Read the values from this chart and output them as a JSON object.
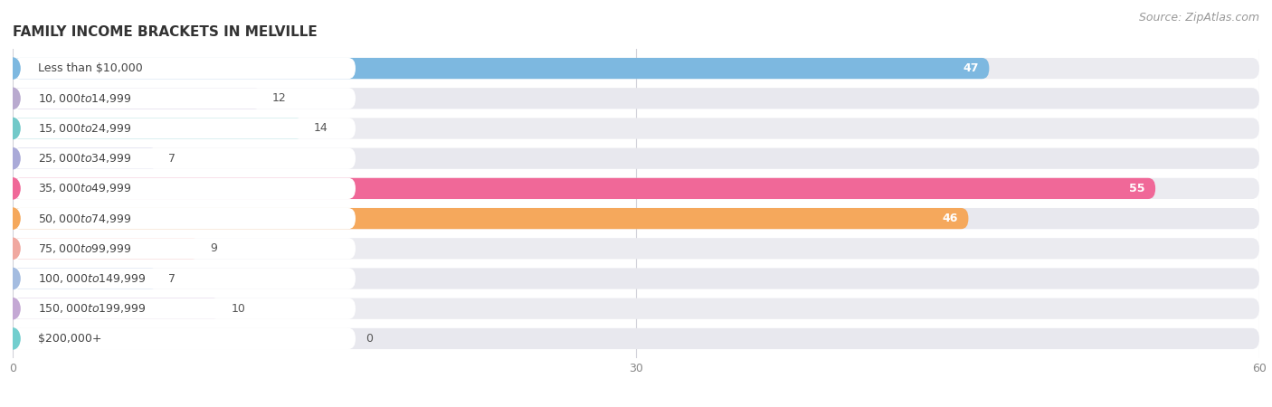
{
  "title": "FAMILY INCOME BRACKETS IN MELVILLE",
  "source": "Source: ZipAtlas.com",
  "categories": [
    "Less than $10,000",
    "$10,000 to $14,999",
    "$15,000 to $24,999",
    "$25,000 to $34,999",
    "$35,000 to $49,999",
    "$50,000 to $74,999",
    "$75,000 to $99,999",
    "$100,000 to $149,999",
    "$150,000 to $199,999",
    "$200,000+"
  ],
  "values": [
    47,
    12,
    14,
    7,
    55,
    46,
    9,
    7,
    10,
    0
  ],
  "bar_colors": [
    "#7db8e0",
    "#b9aacf",
    "#72c9c9",
    "#aaaad8",
    "#f06898",
    "#f5a85c",
    "#f0a8a0",
    "#a4bce0",
    "#c4a8d4",
    "#72cece"
  ],
  "label_colors": [
    "#ffffff",
    "#666666",
    "#666666",
    "#666666",
    "#ffffff",
    "#ffffff",
    "#666666",
    "#666666",
    "#666666",
    "#666666"
  ],
  "xlim": [
    0,
    60
  ],
  "xticks": [
    0,
    30,
    60
  ],
  "bg_color": "#f0f0f5",
  "row_bg_color": "#e8e8ee",
  "white_color": "#ffffff",
  "title_fontsize": 11,
  "source_fontsize": 9,
  "bar_fontsize": 9,
  "label_fontsize": 9
}
